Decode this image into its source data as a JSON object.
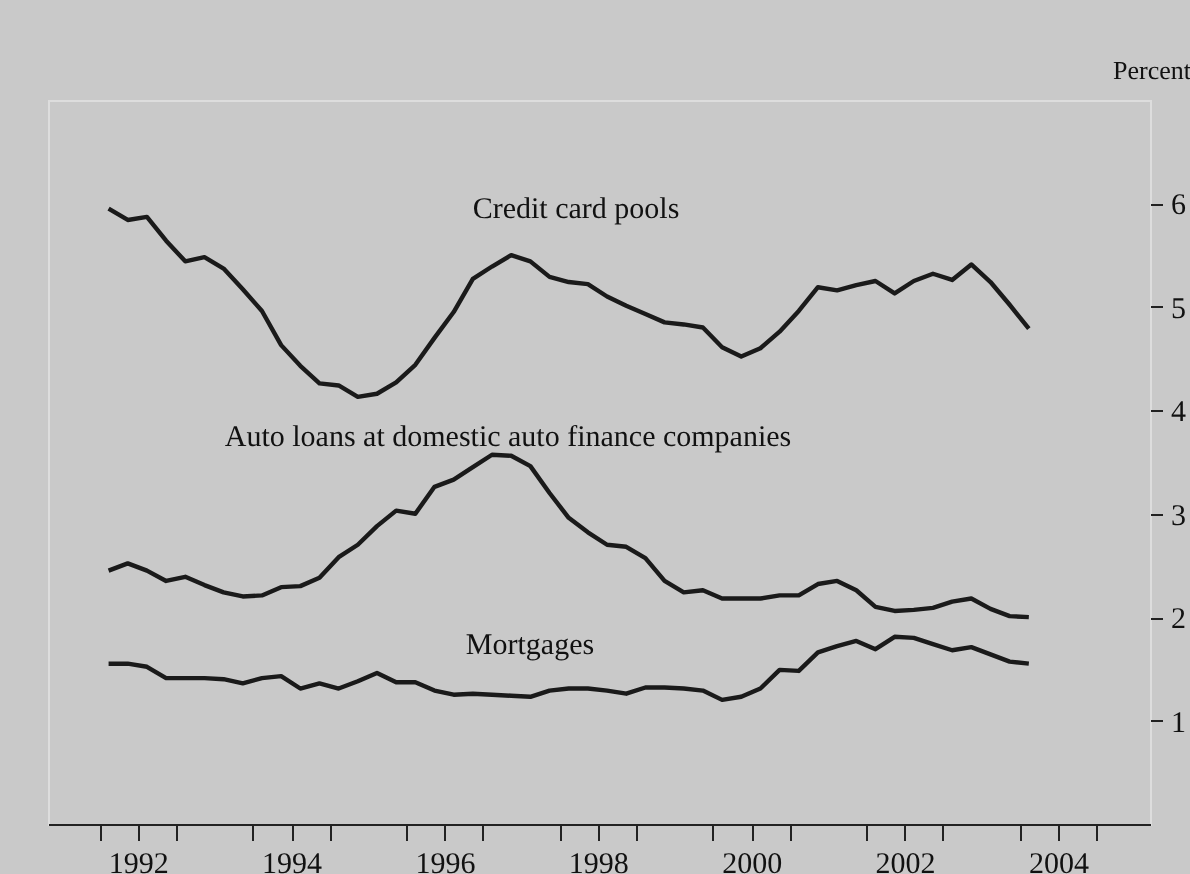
{
  "chart_data": {
    "type": "line",
    "ylabel": "Percent",
    "x": [
      1992.12,
      1992.37,
      1992.62,
      1992.87,
      1993.12,
      1993.37,
      1993.62,
      1993.87,
      1994.12,
      1994.37,
      1994.62,
      1994.87,
      1995.12,
      1995.37,
      1995.62,
      1995.87,
      1996.12,
      1996.37,
      1996.62,
      1996.87,
      1997.12,
      1997.37,
      1997.62,
      1997.87,
      1998.12,
      1998.37,
      1998.62,
      1998.87,
      1999.12,
      1999.37,
      1999.62,
      1999.87,
      2000.12,
      2000.37,
      2000.62,
      2000.87,
      2001.12,
      2001.37,
      2001.62,
      2001.87,
      2002.12,
      2002.37,
      2002.62,
      2002.87,
      2003.12,
      2003.37,
      2003.62,
      2003.87,
      2004.12
    ],
    "series": [
      {
        "name": "Credit card pools",
        "color": "#1a1a1a",
        "values": [
          5.95,
          5.84,
          5.87,
          5.64,
          5.44,
          5.48,
          5.37,
          5.17,
          4.96,
          4.63,
          4.43,
          4.26,
          4.24,
          4.13,
          4.16,
          4.27,
          4.44,
          4.7,
          4.95,
          5.27,
          5.39,
          5.5,
          5.44,
          5.29,
          5.24,
          5.22,
          5.1,
          5.01,
          4.93,
          4.85,
          4.83,
          4.8,
          4.61,
          4.52,
          4.6,
          4.76,
          4.96,
          5.19,
          5.16,
          5.21,
          5.25,
          5.13,
          5.25,
          5.32,
          5.26,
          5.41,
          5.24,
          5.02,
          4.79
        ]
      },
      {
        "name": "Auto loans at domestic auto finance companies",
        "color": "#1a1a1a",
        "values": [
          2.45,
          2.52,
          2.45,
          2.35,
          2.39,
          2.31,
          2.24,
          2.2,
          2.21,
          2.29,
          2.3,
          2.38,
          2.58,
          2.7,
          2.88,
          3.03,
          3.0,
          3.26,
          3.33,
          3.45,
          3.57,
          3.56,
          3.46,
          3.2,
          2.96,
          2.82,
          2.7,
          2.68,
          2.57,
          2.35,
          2.24,
          2.26,
          2.18,
          2.18,
          2.18,
          2.21,
          2.21,
          2.32,
          2.35,
          2.26,
          2.1,
          2.06,
          2.07,
          2.09,
          2.15,
          2.18,
          2.08,
          2.01,
          2.0
        ]
      },
      {
        "name": "Mortgages",
        "color": "#1a1a1a",
        "values": [
          1.55,
          1.55,
          1.52,
          1.41,
          1.41,
          1.41,
          1.4,
          1.36,
          1.41,
          1.43,
          1.31,
          1.36,
          1.31,
          1.38,
          1.46,
          1.37,
          1.37,
          1.29,
          1.25,
          1.26,
          1.25,
          1.24,
          1.23,
          1.29,
          1.31,
          1.31,
          1.29,
          1.26,
          1.32,
          1.32,
          1.31,
          1.29,
          1.2,
          1.23,
          1.31,
          1.49,
          1.48,
          1.66,
          1.72,
          1.77,
          1.69,
          1.81,
          1.8,
          1.74,
          1.68,
          1.71,
          1.64,
          1.57,
          1.55
        ]
      }
    ],
    "xlim": [
      1991.33,
      2005.7
    ],
    "xticks": [
      {
        "value": 1992,
        "label": null
      },
      {
        "value": 1992.5,
        "label": "1992"
      },
      {
        "value": 1993,
        "label": null
      },
      {
        "value": 1994,
        "label": null
      },
      {
        "value": 1994.5,
        "label": "1994"
      },
      {
        "value": 1995,
        "label": null
      },
      {
        "value": 1996,
        "label": null
      },
      {
        "value": 1996.5,
        "label": "1996"
      },
      {
        "value": 1997,
        "label": null
      },
      {
        "value": 1998,
        "label": null
      },
      {
        "value": 1998.5,
        "label": "1998"
      },
      {
        "value": 1999,
        "label": null
      },
      {
        "value": 2000,
        "label": null
      },
      {
        "value": 2000.5,
        "label": "2000"
      },
      {
        "value": 2001,
        "label": null
      },
      {
        "value": 2002,
        "label": null
      },
      {
        "value": 2002.5,
        "label": "2002"
      },
      {
        "value": 2003,
        "label": null
      },
      {
        "value": 2004,
        "label": null
      },
      {
        "value": 2004.5,
        "label": "2004"
      },
      {
        "value": 2005,
        "label": null
      }
    ],
    "ylim": [
      0,
      7
    ],
    "yticks": [
      1,
      2,
      3,
      4,
      5,
      6
    ],
    "line_style": "solid"
  }
}
